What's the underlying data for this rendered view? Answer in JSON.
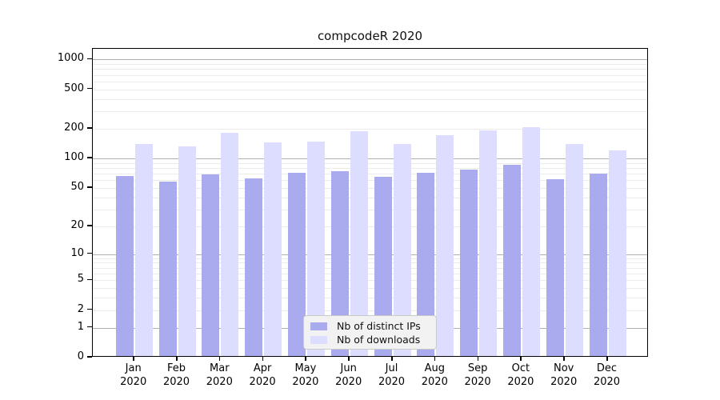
{
  "title": "compcodeR 2020",
  "chart_data": {
    "type": "bar",
    "title": "compcodeR 2020",
    "yscale": "log1p",
    "grid": true,
    "legend_position": "lower center",
    "categories": [
      "Jan",
      "Feb",
      "Mar",
      "Apr",
      "May",
      "Jun",
      "Jul",
      "Aug",
      "Sep",
      "Oct",
      "Nov",
      "Dec"
    ],
    "year_label": "2020",
    "series": [
      {
        "name": "Nb of distinct IPs",
        "color": "#aaaaee",
        "values": [
          64,
          56,
          66,
          60,
          69,
          72,
          63,
          69,
          74,
          83,
          59,
          68
        ]
      },
      {
        "name": "Nb of downloads",
        "color": "#ddddff",
        "values": [
          134,
          128,
          177,
          141,
          143,
          182,
          134,
          165,
          186,
          200,
          135,
          117
        ]
      }
    ],
    "yticks": [
      0,
      1,
      2,
      5,
      10,
      20,
      50,
      100,
      200,
      500,
      1000
    ],
    "ylim": [
      0,
      1280
    ],
    "xlabel": "",
    "ylabel": ""
  },
  "colors": {
    "major_grid": "#b0b0b0",
    "minor_grid": "#ebebeb",
    "axis": "#000000",
    "legend_bg": "#f2f2f2"
  }
}
